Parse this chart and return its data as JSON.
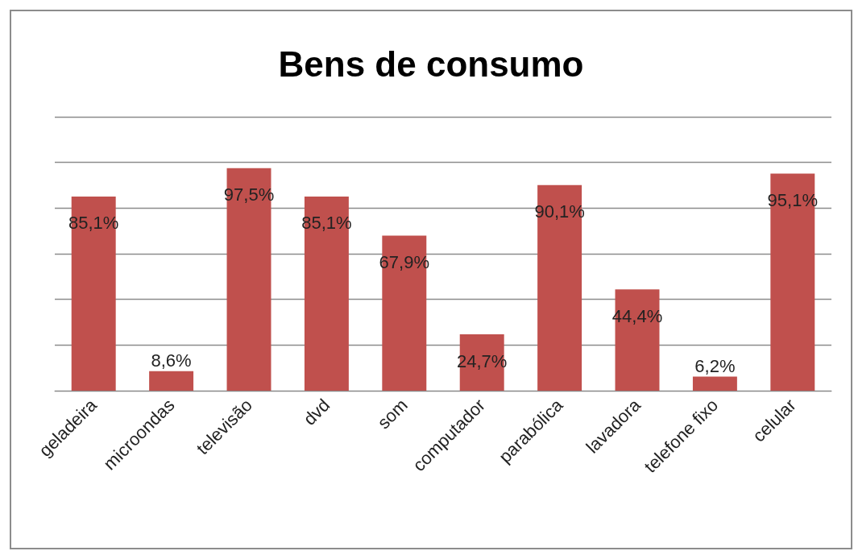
{
  "chart_data": {
    "type": "bar",
    "title": "Bens de consumo",
    "categories": [
      "geladeira",
      "microondas",
      "televisão",
      "dvd",
      "som",
      "computador",
      "parabólica",
      "lavadora",
      "telefone fixo",
      "celular"
    ],
    "values": [
      85.1,
      8.6,
      97.5,
      85.1,
      67.9,
      24.7,
      90.1,
      44.4,
      6.2,
      95.1
    ],
    "value_labels": [
      "85,1%",
      "8,6%",
      "97,5%",
      "85,1%",
      "67,9%",
      "24,7%",
      "90,1%",
      "44,4%",
      "6,2%",
      "95,1%"
    ],
    "color": "#c0504d",
    "ylim": [
      0,
      120
    ],
    "yticks": [
      {
        "value": 0,
        "label": null
      },
      {
        "value": 20,
        "label": null
      },
      {
        "value": 40,
        "label": null
      },
      {
        "value": 60,
        "label": null
      },
      {
        "value": 80,
        "label": null
      },
      {
        "value": 100,
        "label": null
      },
      {
        "value": 120,
        "label": null
      }
    ],
    "grid": "y",
    "tick_labels": "x"
  }
}
